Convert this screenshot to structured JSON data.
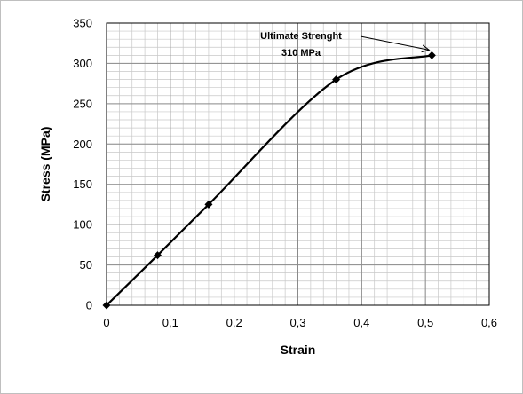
{
  "chart_data": {
    "type": "line",
    "title": "",
    "xlabel": "Strain",
    "ylabel": "Stress (MPa)",
    "xlim": [
      0,
      0.6
    ],
    "ylim": [
      0,
      350
    ],
    "x_major_step": 0.1,
    "y_major_step": 50,
    "x_minor_step": 0.02,
    "y_minor_step": 10,
    "grid": true,
    "x_tick_labels": [
      "0",
      "0,1",
      "0,2",
      "0,3",
      "0,4",
      "0,5",
      "0,6"
    ],
    "y_tick_labels": [
      "0",
      "50",
      "100",
      "150",
      "200",
      "250",
      "300",
      "350"
    ],
    "series": [
      {
        "marker": "diamond",
        "smooth": true,
        "color": "#000000",
        "x": [
          0,
          0.08,
          0.16,
          0.36,
          0.51
        ],
        "y": [
          0,
          62,
          125,
          280,
          310
        ]
      }
    ],
    "annotation": {
      "lines": [
        "Ultimate Strenght",
        "310 MPa"
      ],
      "target": [
        0.51,
        310
      ]
    }
  }
}
